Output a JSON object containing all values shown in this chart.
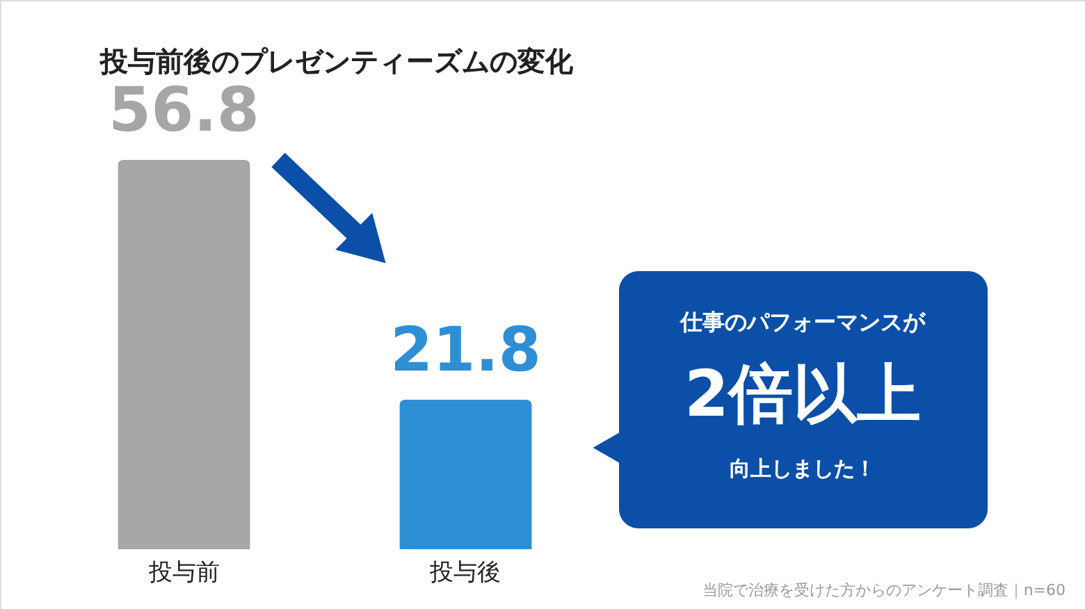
{
  "chart_data": {
    "type": "bar",
    "title": "投与前後のプレゼンティーズムの変化",
    "categories": [
      "投与前",
      "投与後"
    ],
    "values": [
      56.8,
      21.8
    ],
    "colors": [
      "#a6a6a6",
      "#2e8fd4"
    ],
    "data_labels": true,
    "annotations": [
      "仕事のパフォーマンスが",
      "2倍以上",
      "向上しました！",
      "当院で治療を受けた方からのアンケート調査｜n=60"
    ]
  }
}
